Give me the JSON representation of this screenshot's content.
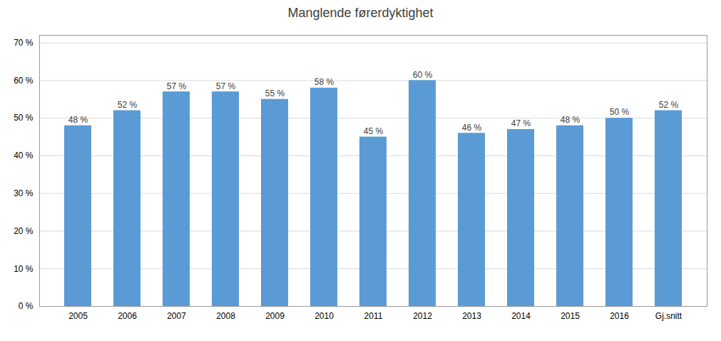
{
  "chart_data": {
    "type": "bar",
    "title": "Manglende førerdyktighet",
    "categories": [
      "2005",
      "2006",
      "2007",
      "2008",
      "2009",
      "2010",
      "2011",
      "2012",
      "2013",
      "2014",
      "2015",
      "2016",
      "Gj.snitt"
    ],
    "values": [
      0.48,
      0.52,
      0.57,
      0.57,
      0.55,
      0.58,
      0.45,
      0.6,
      0.46,
      0.47,
      0.48,
      0.5,
      0.52
    ],
    "value_labels": [
      "48 %",
      "52 %",
      "57 %",
      "57 %",
      "55 %",
      "58 %",
      "45 %",
      "60 %",
      "46 %",
      "47 %",
      "48 %",
      "50 %",
      "52 %"
    ],
    "data_labels": true,
    "color": "#5B9BD5",
    "ylim": [
      0.0,
      0.72
    ],
    "yticks": [
      {
        "value": 0.0,
        "label": "0 %"
      },
      {
        "value": 0.1,
        "label": "10 %"
      },
      {
        "value": 0.2,
        "label": "20 %"
      },
      {
        "value": 0.3,
        "label": "30 %"
      },
      {
        "value": 0.4,
        "label": "40 %"
      },
      {
        "value": 0.5,
        "label": "50 %"
      },
      {
        "value": 0.6,
        "label": "60 %"
      },
      {
        "value": 0.7,
        "label": "70 %"
      }
    ],
    "grid": true
  }
}
